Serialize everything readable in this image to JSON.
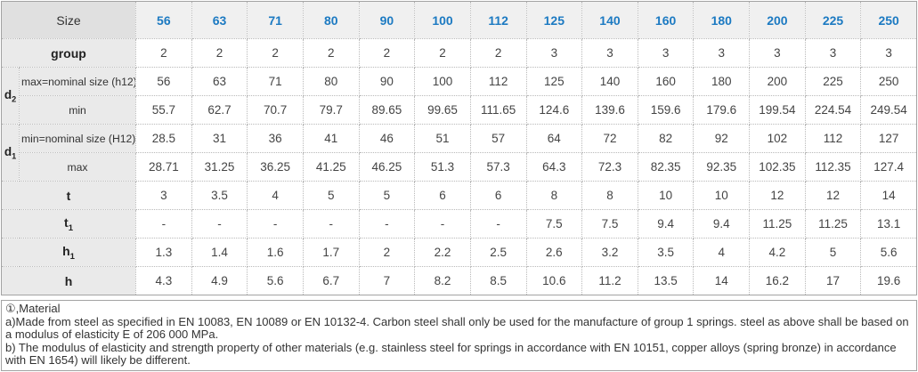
{
  "colors": {
    "accent_header_value_text": "#1c7ac2",
    "header_label_bg": "#e0e0e0",
    "header_value_bg": "#f0f0f0",
    "row_label_bg": "#eaeaea"
  },
  "table": {
    "corner_label": "Size",
    "sizes": [
      "56",
      "63",
      "71",
      "80",
      "90",
      "100",
      "112",
      "125",
      "140",
      "160",
      "180",
      "200",
      "225",
      "250"
    ],
    "rows": [
      {
        "id": "group",
        "type": "full",
        "label": {
          "base": "group",
          "sub": ""
        },
        "cells": [
          "2",
          "2",
          "2",
          "2",
          "2",
          "2",
          "2",
          "3",
          "3",
          "3",
          "3",
          "3",
          "3",
          "3"
        ]
      },
      {
        "id": "d2-max",
        "type": "span-start",
        "group_label": {
          "base": "d",
          "sub": "2"
        },
        "sub_label": "max=nominal size (h12)",
        "align": "left",
        "cells": [
          "56",
          "63",
          "71",
          "80",
          "90",
          "100",
          "112",
          "125",
          "140",
          "160",
          "180",
          "200",
          "225",
          "250"
        ]
      },
      {
        "id": "d2-min",
        "type": "span-end",
        "sub_label": "min",
        "align": "center",
        "cells": [
          "55.7",
          "62.7",
          "70.7",
          "79.7",
          "89.65",
          "99.65",
          "111.65",
          "124.6",
          "139.6",
          "159.6",
          "179.6",
          "199.54",
          "224.54",
          "249.54"
        ]
      },
      {
        "id": "d1-min",
        "type": "span-start",
        "group_label": {
          "base": "d",
          "sub": "1"
        },
        "sub_label": "min=nominal size (H12)",
        "align": "left",
        "cells": [
          "28.5",
          "31",
          "36",
          "41",
          "46",
          "51",
          "57",
          "64",
          "72",
          "82",
          "92",
          "102",
          "112",
          "127"
        ]
      },
      {
        "id": "d1-max",
        "type": "span-end",
        "sub_label": "max",
        "align": "center",
        "cells": [
          "28.71",
          "31.25",
          "36.25",
          "41.25",
          "46.25",
          "51.3",
          "57.3",
          "64.3",
          "72.3",
          "82.35",
          "92.35",
          "102.35",
          "112.35",
          "127.4"
        ]
      },
      {
        "id": "t",
        "type": "full",
        "label": {
          "base": "t",
          "sub": ""
        },
        "cells": [
          "3",
          "3.5",
          "4",
          "5",
          "5",
          "6",
          "6",
          "8",
          "8",
          "10",
          "10",
          "12",
          "12",
          "14"
        ]
      },
      {
        "id": "t1",
        "type": "full",
        "label": {
          "base": "t",
          "sub": "1"
        },
        "cells": [
          "-",
          "-",
          "-",
          "-",
          "-",
          "-",
          "-",
          "7.5",
          "7.5",
          "9.4",
          "9.4",
          "11.25",
          "11.25",
          "13.1"
        ]
      },
      {
        "id": "h1",
        "type": "full",
        "label": {
          "base": "h",
          "sub": "1"
        },
        "cells": [
          "1.3",
          "1.4",
          "1.6",
          "1.7",
          "2",
          "2.2",
          "2.5",
          "2.6",
          "3.2",
          "3.5",
          "4",
          "4.2",
          "5",
          "5.6"
        ]
      },
      {
        "id": "h",
        "type": "full",
        "label": {
          "base": "h",
          "sub": ""
        },
        "cells": [
          "4.3",
          "4.9",
          "5.6",
          "6.7",
          "7",
          "8.2",
          "8.5",
          "10.6",
          "11.2",
          "13.5",
          "14",
          "16.2",
          "17",
          "19.6"
        ]
      }
    ]
  },
  "footnote": {
    "title": "①,Material",
    "note_a": "a)Made from steel as specified in EN 10083, EN 10089 or EN 10132-4. Carbon steel shall only be used for the manufacture of group 1 springs. steel as above shall be based on a modulus of elasticity E of 206 000 MPa.",
    "note_b": "b) The modulus of elasticity and strength property of other materials (e.g. stainless steel for springs in accordance with EN 10151, copper alloys (spring bronze) in accordance with EN 1654) will likely be different."
  }
}
